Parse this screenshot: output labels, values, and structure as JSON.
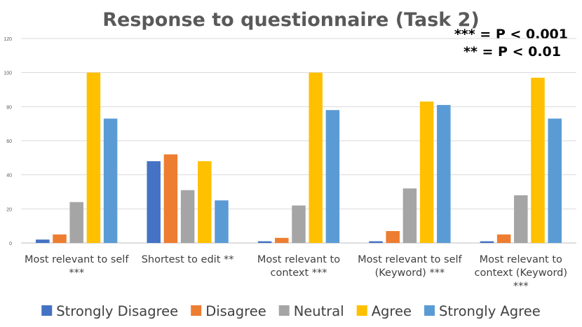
{
  "chart_data": {
    "type": "bar",
    "title": "Response to questionnaire (Task 2)",
    "annotations": [
      "*** = P < 0.001",
      "** = P < 0.01"
    ],
    "categories": [
      [
        "Most relevant to self",
        "***"
      ],
      [
        "Shortest to edit **"
      ],
      [
        "Most relevant to",
        "context ***"
      ],
      [
        "Most relevant to self",
        "(Keyword) ***"
      ],
      [
        "Most relevant to",
        "context (Keyword)",
        "***"
      ]
    ],
    "series": [
      {
        "name": "Strongly Disagree",
        "color": "#4472C4",
        "values": [
          2,
          48,
          1,
          1,
          1
        ]
      },
      {
        "name": "Disagree",
        "color": "#ED7D31",
        "values": [
          5,
          52,
          3,
          7,
          5
        ]
      },
      {
        "name": "Neutral",
        "color": "#A5A5A5",
        "values": [
          24,
          31,
          22,
          32,
          28
        ]
      },
      {
        "name": "Agree",
        "color": "#FFC000",
        "values": [
          100,
          48,
          100,
          83,
          97
        ]
      },
      {
        "name": "Strongly Agree",
        "color": "#5B9BD5",
        "values": [
          73,
          25,
          78,
          81,
          73
        ]
      }
    ],
    "yticks": [
      0,
      20,
      40,
      60,
      80,
      100,
      120
    ],
    "ylim": [
      0,
      120
    ],
    "grid": true,
    "legend_position": "bottom"
  }
}
